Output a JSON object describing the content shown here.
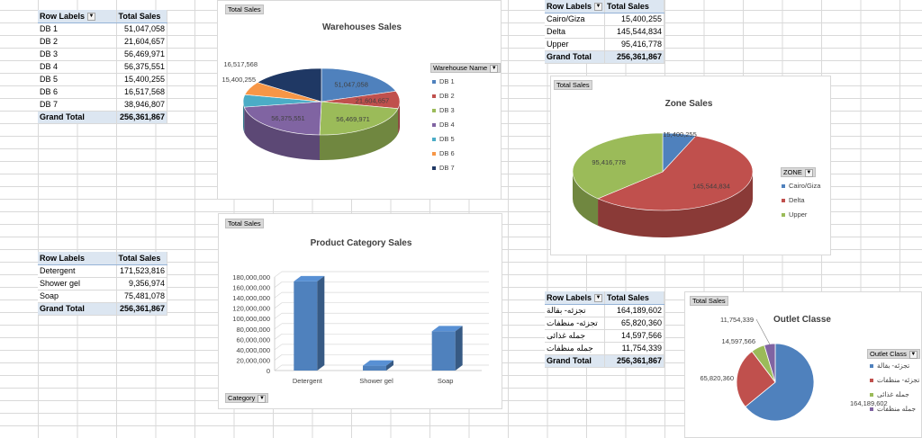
{
  "warehouse_table": {
    "headers": [
      "Row Labels",
      "Total Sales"
    ],
    "rows": [
      [
        "DB 1",
        "51,047,058"
      ],
      [
        "DB 2",
        "21,604,657"
      ],
      [
        "DB 3",
        "56,469,971"
      ],
      [
        "DB 4",
        "56,375,551"
      ],
      [
        "DB 5",
        "15,400,255"
      ],
      [
        "DB 6",
        "16,517,568"
      ],
      [
        "DB 7",
        "38,946,807"
      ]
    ],
    "total": [
      "Grand Total",
      "256,361,867"
    ]
  },
  "category_table": {
    "headers": [
      "Row Labels",
      "Total Sales"
    ],
    "rows": [
      [
        "Detergent",
        "171,523,816"
      ],
      [
        "Shower gel",
        "9,356,974"
      ],
      [
        "Soap",
        "75,481,078"
      ]
    ],
    "total": [
      "Grand Total",
      "256,361,867"
    ]
  },
  "zone_table": {
    "headers": [
      "Row Labels",
      "Total Sales"
    ],
    "rows": [
      [
        "Cairo/Giza",
        "15,400,255"
      ],
      [
        "Delta",
        "145,544,834"
      ],
      [
        "Upper",
        "95,416,778"
      ]
    ],
    "total": [
      "Grand Total",
      "256,361,867"
    ]
  },
  "outlet_table": {
    "headers": [
      "Row Labels",
      "Total Sales"
    ],
    "rows": [
      [
        "تجزئه- بقالة",
        "164,189,602"
      ],
      [
        "تجزئه- منظفات",
        "65,820,360"
      ],
      [
        "جمله غذائى",
        "14,597,566"
      ],
      [
        "جمله منظفات",
        "11,754,339"
      ]
    ],
    "total": [
      "Grand Total",
      "256,361,867"
    ]
  },
  "warehouse_chart": {
    "field_button": "Total Sales",
    "legend_button": "Warehouse Name",
    "title": "Warehouses Sales",
    "legend": [
      "DB 1",
      "DB 2",
      "DB 3",
      "DB 4",
      "DB 5",
      "DB 6",
      "DB 7"
    ]
  },
  "zone_chart": {
    "field_button": "Total Sales",
    "legend_button": "ZONE",
    "title": "Zone Sales",
    "legend": [
      "Cairo/Giza",
      "Delta",
      "Upper"
    ]
  },
  "category_chart": {
    "field_button": "Total Sales",
    "axis_button": "Category",
    "title": "Product Category Sales",
    "yticks": [
      "180,000,000",
      "160,000,000",
      "140,000,000",
      "120,000,000",
      "100,000,000",
      "80,000,000",
      "60,000,000",
      "40,000,000",
      "20,000,000",
      "0"
    ]
  },
  "outlet_chart": {
    "field_button": "Total Sales",
    "legend_button": "Outlet Class",
    "title": "Outlet Classe",
    "legend": [
      "تجزئه- بقالة",
      "تجزئه- منظفات",
      "جمله غذائى",
      "جمله منظفات"
    ]
  },
  "colors": {
    "blue": "#4f81bd",
    "red": "#c0504d",
    "green": "#9bbb59",
    "purple": "#8064a2",
    "teal": "#4bacc6",
    "orange": "#f79646",
    "navy": "#1f3864"
  },
  "chart_data": [
    {
      "type": "pie",
      "title": "Warehouses Sales",
      "categories": [
        "DB 1",
        "DB 2",
        "DB 3",
        "DB 4",
        "DB 5",
        "DB 6",
        "DB 7"
      ],
      "values": [
        51047058,
        21604657,
        56469971,
        56375551,
        15400255,
        16517568,
        38946807
      ],
      "labels": [
        "51,047,058",
        "21,604,657",
        "56,469,971",
        "56,375,551",
        "15,400,255",
        "16,517,568",
        ""
      ],
      "legend": "right"
    },
    {
      "type": "pie",
      "title": "Zone Sales",
      "categories": [
        "Cairo/Giza",
        "Delta",
        "Upper"
      ],
      "values": [
        15400255,
        145544834,
        95416778
      ],
      "labels": [
        "15,400,255",
        "145,544,834",
        "95,416,778"
      ],
      "legend": "right"
    },
    {
      "type": "bar",
      "title": "Product Category Sales",
      "categories": [
        "Detergent",
        "Shower gel",
        "Soap"
      ],
      "values": [
        171523816,
        9356974,
        75481078
      ],
      "ylim": [
        0,
        180000000
      ],
      "grid": true
    },
    {
      "type": "pie",
      "title": "Outlet Classe",
      "categories": [
        "تجزئه- بقالة",
        "تجزئه- منظفات",
        "جمله غذائى",
        "جمله منظفات"
      ],
      "values": [
        164189602,
        65820360,
        14597566,
        11754339
      ],
      "labels": [
        "164,189,602",
        "65,820,360",
        "14,597,566",
        "11,754,339"
      ],
      "legend": "right"
    }
  ]
}
